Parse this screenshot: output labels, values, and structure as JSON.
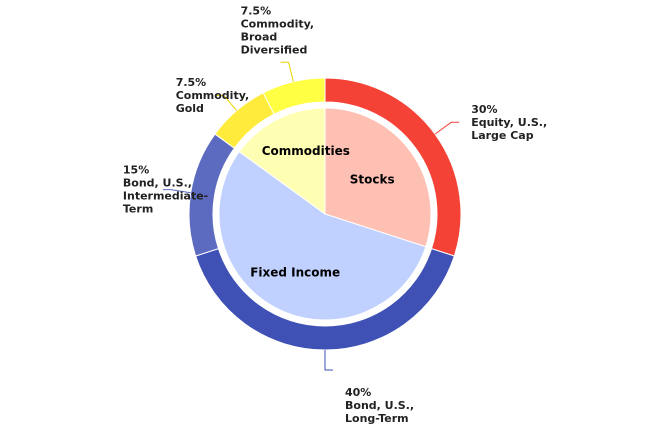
{
  "chart_data": {
    "type": "pie",
    "subtype": "sunburst",
    "inner": [
      {
        "name": "Stocks",
        "value": 30,
        "color": "#ffc0b4"
      },
      {
        "name": "Fixed Income",
        "value": 55,
        "color": "#c0d0ff"
      },
      {
        "name": "Commodities",
        "value": 15,
        "color": "#ffffb4"
      }
    ],
    "outer": [
      {
        "lines": [
          "30%",
          "Equity, U.S.,",
          "Large Cap"
        ],
        "value": 30,
        "parent": "Stocks",
        "color": "#f44336"
      },
      {
        "lines": [
          "40%",
          "Bond, U.S.,",
          "Long-Term"
        ],
        "value": 40,
        "parent": "Fixed Income",
        "color": "#3f51b5"
      },
      {
        "lines": [
          "15%",
          "Bond, U.S.,",
          "Intermediate-",
          "Term"
        ],
        "value": 15,
        "parent": "Fixed Income",
        "color": "#5c6bc0"
      },
      {
        "lines": [
          "7.5%",
          "Commodity,",
          "Gold"
        ],
        "value": 7.5,
        "parent": "Commodities",
        "color": "#ffeb3b"
      },
      {
        "lines": [
          "7.5%",
          "Commodity,",
          "Broad",
          "Diversified"
        ],
        "value": 7.5,
        "parent": "Commodities",
        "color": "#ffff44"
      }
    ],
    "legend": "none"
  }
}
